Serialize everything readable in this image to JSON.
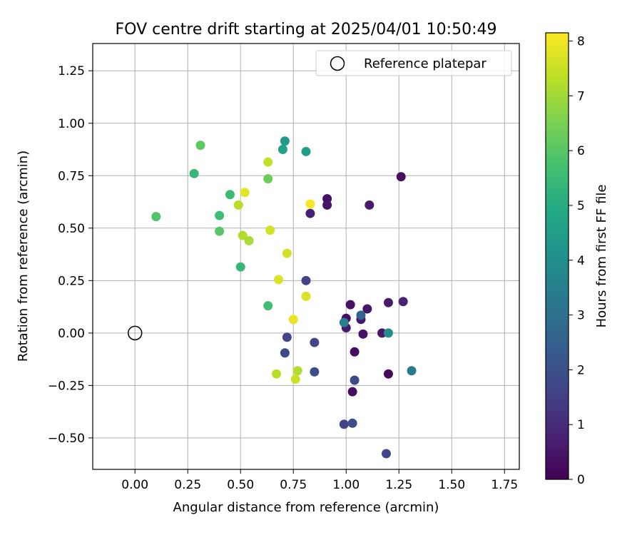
{
  "chart_data": {
    "type": "scatter",
    "title": "FOV centre drift starting at 2025/04/01 10:50:49",
    "xlabel": "Angular distance from reference (arcmin)",
    "ylabel": "Rotation from reference (arcmin)",
    "xlim": [
      -0.2,
      1.82
    ],
    "ylim": [
      -0.65,
      1.38
    ],
    "xticks": [
      0.0,
      0.25,
      0.5,
      0.75,
      1.0,
      1.25,
      1.5,
      1.75
    ],
    "xtick_labels": [
      "0.00",
      "0.25",
      "0.50",
      "0.75",
      "1.00",
      "1.25",
      "1.50",
      "1.75"
    ],
    "yticks": [
      -0.5,
      -0.25,
      0.0,
      0.25,
      0.5,
      0.75,
      1.0,
      1.25
    ],
    "ytick_labels": [
      "−0.50",
      "−0.25",
      "0.00",
      "0.25",
      "0.50",
      "0.75",
      "1.00",
      "1.25"
    ],
    "grid": true,
    "legend": {
      "position": "top-right",
      "entries": [
        {
          "label": "Reference platepar",
          "marker": "open-circle"
        }
      ]
    },
    "reference_point": {
      "x": 0.0,
      "y": 0.0
    },
    "colorbar": {
      "label": "Hours from first FF file",
      "colormap": "viridis",
      "range": [
        0,
        8.15
      ],
      "ticks": [
        0,
        1,
        2,
        3,
        4,
        5,
        6,
        7,
        8
      ],
      "tick_labels": [
        "0",
        "1",
        "2",
        "3",
        "4",
        "5",
        "6",
        "7",
        "8"
      ]
    },
    "points": [
      {
        "x": 1.26,
        "y": 0.745,
        "c": 0.3
      },
      {
        "x": 0.91,
        "y": 0.64,
        "c": 0.4
      },
      {
        "x": 0.91,
        "y": 0.61,
        "c": 0.5
      },
      {
        "x": 1.11,
        "y": 0.61,
        "c": 0.6
      },
      {
        "x": 0.83,
        "y": 0.57,
        "c": 0.7
      },
      {
        "x": 1.02,
        "y": 0.135,
        "c": 0.4
      },
      {
        "x": 1.1,
        "y": 0.115,
        "c": 0.5
      },
      {
        "x": 1.2,
        "y": 0.145,
        "c": 0.6
      },
      {
        "x": 1.27,
        "y": 0.15,
        "c": 0.8
      },
      {
        "x": 1.0,
        "y": 0.07,
        "c": 0.3
      },
      {
        "x": 1.07,
        "y": 0.065,
        "c": 0.5
      },
      {
        "x": 1.0,
        "y": 0.025,
        "c": 0.6
      },
      {
        "x": 1.08,
        "y": -0.005,
        "c": 0.4
      },
      {
        "x": 1.17,
        "y": 0.0,
        "c": 0.5
      },
      {
        "x": 1.04,
        "y": -0.09,
        "c": 0.3
      },
      {
        "x": 1.2,
        "y": -0.195,
        "c": 0.2
      },
      {
        "x": 1.03,
        "y": -0.28,
        "c": 0.3
      },
      {
        "x": 0.81,
        "y": 0.25,
        "c": 1.6
      },
      {
        "x": 0.72,
        "y": -0.02,
        "c": 1.7
      },
      {
        "x": 0.71,
        "y": -0.095,
        "c": 1.8
      },
      {
        "x": 0.85,
        "y": -0.045,
        "c": 1.7
      },
      {
        "x": 0.85,
        "y": -0.185,
        "c": 1.9
      },
      {
        "x": 1.04,
        "y": -0.225,
        "c": 1.8
      },
      {
        "x": 0.99,
        "y": -0.435,
        "c": 1.6
      },
      {
        "x": 1.03,
        "y": -0.43,
        "c": 1.9
      },
      {
        "x": 1.19,
        "y": -0.575,
        "c": 1.7
      },
      {
        "x": 1.07,
        "y": 0.085,
        "c": 2.6
      },
      {
        "x": 0.99,
        "y": 0.05,
        "c": 3.5
      },
      {
        "x": 1.2,
        "y": 0.0,
        "c": 3.9
      },
      {
        "x": 1.31,
        "y": -0.18,
        "c": 3.3
      },
      {
        "x": 0.71,
        "y": 0.915,
        "c": 4.4
      },
      {
        "x": 0.7,
        "y": 0.875,
        "c": 4.6
      },
      {
        "x": 0.81,
        "y": 0.865,
        "c": 4.5
      },
      {
        "x": 0.28,
        "y": 0.76,
        "c": 5.4
      },
      {
        "x": 0.45,
        "y": 0.66,
        "c": 5.5
      },
      {
        "x": 0.4,
        "y": 0.56,
        "c": 5.6
      },
      {
        "x": 0.1,
        "y": 0.555,
        "c": 5.9
      },
      {
        "x": 0.4,
        "y": 0.485,
        "c": 6.0
      },
      {
        "x": 0.5,
        "y": 0.315,
        "c": 5.4
      },
      {
        "x": 0.63,
        "y": 0.13,
        "c": 5.6
      },
      {
        "x": 0.31,
        "y": 0.895,
        "c": 6.1
      },
      {
        "x": 0.63,
        "y": 0.735,
        "c": 6.3
      },
      {
        "x": 0.63,
        "y": 0.815,
        "c": 7.4
      },
      {
        "x": 0.52,
        "y": 0.67,
        "c": 7.8
      },
      {
        "x": 0.49,
        "y": 0.61,
        "c": 7.3
      },
      {
        "x": 0.51,
        "y": 0.465,
        "c": 7.2
      },
      {
        "x": 0.54,
        "y": 0.44,
        "c": 7.1
      },
      {
        "x": 0.64,
        "y": 0.49,
        "c": 7.6
      },
      {
        "x": 0.72,
        "y": 0.38,
        "c": 7.6
      },
      {
        "x": 0.68,
        "y": 0.255,
        "c": 7.7
      },
      {
        "x": 0.81,
        "y": 0.175,
        "c": 7.7
      },
      {
        "x": 0.83,
        "y": 0.615,
        "c": 8.1
      },
      {
        "x": 0.75,
        "y": 0.065,
        "c": 7.9
      },
      {
        "x": 0.67,
        "y": -0.195,
        "c": 7.3
      },
      {
        "x": 0.77,
        "y": -0.18,
        "c": 7.2
      },
      {
        "x": 0.76,
        "y": -0.22,
        "c": 7.5
      }
    ]
  }
}
